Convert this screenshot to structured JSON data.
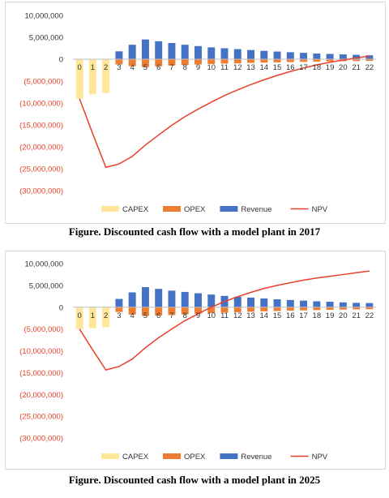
{
  "chart_data": [
    {
      "type": "bar",
      "title": "",
      "caption": "Figure. Discounted cash flow with a model plant in 2017",
      "x": [
        "0",
        "1",
        "2",
        "3",
        "4",
        "5",
        "6",
        "7",
        "8",
        "9",
        "10",
        "11",
        "12",
        "13",
        "14",
        "15",
        "16",
        "17",
        "18",
        "19",
        "20",
        "21",
        "22"
      ],
      "yticks": [
        "10,000,000",
        "5,000,000",
        "0",
        "(5,000,000)",
        "(10,000,000)",
        "(15,000,000)",
        "(20,000,000)",
        "(25,000,000)",
        "(30,000,000)"
      ],
      "ylim": [
        -30000000,
        10000000
      ],
      "grid": false,
      "legend_position": "bottom",
      "series": [
        {
          "name": "CAPEX",
          "kind": "bar",
          "values": [
            -9000000,
            -8000000,
            -7700000,
            0,
            0,
            0,
            0,
            0,
            0,
            0,
            0,
            0,
            0,
            0,
            0,
            0,
            0,
            0,
            0,
            0,
            0,
            0,
            0
          ]
        },
        {
          "name": "OPEX",
          "kind": "bar",
          "values": [
            0,
            0,
            0,
            -1200000,
            -1600000,
            -1800000,
            -1600000,
            -1450000,
            -1350000,
            -1200000,
            -1100000,
            -1000000,
            -950000,
            -850000,
            -780000,
            -720000,
            -660000,
            -600000,
            -550000,
            -500000,
            -460000,
            -420000,
            -380000
          ]
        },
        {
          "name": "Revenue",
          "kind": "bar",
          "values": [
            0,
            0,
            0,
            1800000,
            3300000,
            4500000,
            4100000,
            3700000,
            3300000,
            3000000,
            2700000,
            2500000,
            2300000,
            2100000,
            1900000,
            1750000,
            1600000,
            1450000,
            1300000,
            1200000,
            1100000,
            1000000,
            900000
          ]
        },
        {
          "name": "NPV",
          "kind": "line",
          "values": [
            -9000000,
            -17000000,
            -24700000,
            -23900000,
            -22200000,
            -19600000,
            -17300000,
            -15100000,
            -13100000,
            -11400000,
            -9800000,
            -8300000,
            -7000000,
            -5800000,
            -4700000,
            -3700000,
            -2800000,
            -2000000,
            -1300000,
            -700000,
            -200000,
            300000,
            700000
          ]
        }
      ]
    },
    {
      "type": "bar",
      "title": "",
      "caption": "Figure. Discounted cash flow with a model plant in 2025",
      "x": [
        "0",
        "1",
        "2",
        "3",
        "4",
        "5",
        "6",
        "7",
        "8",
        "9",
        "10",
        "11",
        "12",
        "13",
        "14",
        "15",
        "16",
        "17",
        "18",
        "19",
        "20",
        "21",
        "22"
      ],
      "yticks": [
        "10,000,000",
        "5,000,000",
        "0",
        "(5,000,000)",
        "(10,000,000)",
        "(15,000,000)",
        "(20,000,000)",
        "(25,000,000)",
        "(30,000,000)"
      ],
      "ylim": [
        -30000000,
        10000000
      ],
      "grid": false,
      "legend_position": "bottom",
      "series": [
        {
          "name": "CAPEX",
          "kind": "bar",
          "values": [
            -5000000,
            -4800000,
            -4600000,
            0,
            0,
            0,
            0,
            0,
            0,
            0,
            0,
            0,
            0,
            0,
            0,
            0,
            0,
            0,
            0,
            0,
            0,
            0,
            0
          ]
        },
        {
          "name": "OPEX",
          "kind": "bar",
          "values": [
            0,
            0,
            0,
            -1100000,
            -1700000,
            -2000000,
            -1900000,
            -1800000,
            -1650000,
            -1500000,
            -1350000,
            -1250000,
            -1150000,
            -1050000,
            -950000,
            -880000,
            -800000,
            -730000,
            -670000,
            -610000,
            -560000,
            -510000,
            -470000
          ]
        },
        {
          "name": "Revenue",
          "kind": "bar",
          "values": [
            0,
            0,
            0,
            1900000,
            3400000,
            4600000,
            4200000,
            3800000,
            3500000,
            3200000,
            2900000,
            2600000,
            2400000,
            2200000,
            2000000,
            1800000,
            1650000,
            1500000,
            1350000,
            1250000,
            1100000,
            1000000,
            950000
          ]
        },
        {
          "name": "NPV",
          "kind": "line",
          "values": [
            -5000000,
            -9800000,
            -14400000,
            -13600000,
            -11900000,
            -9300000,
            -7000000,
            -5000000,
            -3100000,
            -1500000,
            0,
            1300000,
            2400000,
            3400000,
            4300000,
            5000000,
            5600000,
            6200000,
            6700000,
            7100000,
            7500000,
            7900000,
            8300000
          ]
        }
      ]
    }
  ],
  "colors": {
    "CAPEX": "#ffe699",
    "OPEX": "#ed7d31",
    "Revenue": "#4472c4",
    "NPV": "#e8402a"
  }
}
